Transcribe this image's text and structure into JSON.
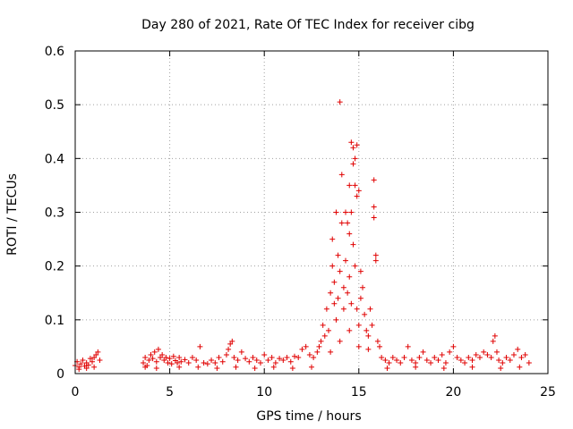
{
  "chart_data": {
    "type": "scatter",
    "title": "Day 280 of 2021, Rate Of TEC Index for receiver cibg",
    "xlabel": "GPS time / hours",
    "ylabel": "ROTI / TECUs",
    "xlim": [
      0,
      25
    ],
    "ylim": [
      0,
      0.6
    ],
    "xticks": [
      0,
      5,
      10,
      15,
      20,
      25
    ],
    "xtick_labels": [
      "0",
      "5",
      "10",
      "15",
      "20",
      "25"
    ],
    "yticks": [
      0,
      0.1,
      0.2,
      0.3,
      0.4,
      0.5,
      0.6
    ],
    "ytick_labels": [
      "0",
      "0.1",
      "0.2",
      "0.3",
      "0.4",
      "0.5",
      "0.6"
    ],
    "grid": true,
    "marker": "+",
    "color": "#e00000",
    "series": [
      {
        "name": "ROTI",
        "points": [
          [
            0.0,
            0.015
          ],
          [
            0.1,
            0.022
          ],
          [
            0.2,
            0.012
          ],
          [
            0.3,
            0.018
          ],
          [
            0.4,
            0.025
          ],
          [
            0.5,
            0.014
          ],
          [
            0.6,
            0.02
          ],
          [
            0.7,
            0.016
          ],
          [
            0.8,
            0.028
          ],
          [
            0.9,
            0.022
          ],
          [
            1.0,
            0.03
          ],
          [
            1.1,
            0.035
          ],
          [
            1.2,
            0.04
          ],
          [
            1.3,
            0.025
          ],
          [
            0.2,
            0.008
          ],
          [
            0.6,
            0.01
          ],
          [
            1.0,
            0.012
          ],
          [
            3.6,
            0.02
          ],
          [
            3.7,
            0.03
          ],
          [
            3.8,
            0.015
          ],
          [
            3.9,
            0.025
          ],
          [
            4.0,
            0.035
          ],
          [
            4.1,
            0.028
          ],
          [
            4.2,
            0.04
          ],
          [
            4.3,
            0.022
          ],
          [
            4.4,
            0.045
          ],
          [
            4.5,
            0.03
          ],
          [
            4.6,
            0.035
          ],
          [
            4.7,
            0.025
          ],
          [
            4.8,
            0.03
          ],
          [
            4.9,
            0.02
          ],
          [
            5.0,
            0.028
          ],
          [
            5.1,
            0.018
          ],
          [
            5.2,
            0.032
          ],
          [
            5.3,
            0.024
          ],
          [
            5.4,
            0.02
          ],
          [
            5.5,
            0.03
          ],
          [
            5.6,
            0.022
          ],
          [
            5.8,
            0.026
          ],
          [
            6.0,
            0.02
          ],
          [
            6.2,
            0.03
          ],
          [
            6.4,
            0.025
          ],
          [
            6.6,
            0.05
          ],
          [
            6.8,
            0.02
          ],
          [
            7.0,
            0.018
          ],
          [
            7.2,
            0.025
          ],
          [
            7.4,
            0.02
          ],
          [
            7.6,
            0.03
          ],
          [
            7.8,
            0.022
          ],
          [
            8.0,
            0.035
          ],
          [
            8.1,
            0.045
          ],
          [
            8.2,
            0.055
          ],
          [
            8.3,
            0.06
          ],
          [
            8.4,
            0.03
          ],
          [
            8.6,
            0.025
          ],
          [
            8.8,
            0.04
          ],
          [
            9.0,
            0.028
          ],
          [
            9.2,
            0.022
          ],
          [
            9.4,
            0.03
          ],
          [
            9.6,
            0.025
          ],
          [
            9.8,
            0.02
          ],
          [
            10.0,
            0.035
          ],
          [
            10.2,
            0.025
          ],
          [
            10.4,
            0.03
          ],
          [
            10.6,
            0.02
          ],
          [
            10.8,
            0.028
          ],
          [
            11.0,
            0.025
          ],
          [
            11.2,
            0.03
          ],
          [
            11.4,
            0.022
          ],
          [
            11.6,
            0.032
          ],
          [
            11.8,
            0.03
          ],
          [
            12.0,
            0.045
          ],
          [
            12.2,
            0.05
          ],
          [
            12.4,
            0.035
          ],
          [
            12.6,
            0.03
          ],
          [
            12.8,
            0.04
          ],
          [
            3.7,
            0.012
          ],
          [
            4.3,
            0.01
          ],
          [
            5.5,
            0.012
          ],
          [
            6.5,
            0.012
          ],
          [
            7.5,
            0.01
          ],
          [
            8.5,
            0.012
          ],
          [
            9.5,
            0.01
          ],
          [
            10.5,
            0.012
          ],
          [
            11.5,
            0.01
          ],
          [
            12.5,
            0.012
          ],
          [
            12.9,
            0.05
          ],
          [
            13.0,
            0.06
          ],
          [
            13.1,
            0.09
          ],
          [
            13.2,
            0.07
          ],
          [
            13.3,
            0.12
          ],
          [
            13.4,
            0.08
          ],
          [
            13.5,
            0.15
          ],
          [
            13.6,
            0.2
          ],
          [
            13.6,
            0.25
          ],
          [
            13.7,
            0.13
          ],
          [
            13.7,
            0.17
          ],
          [
            13.8,
            0.1
          ],
          [
            13.8,
            0.3
          ],
          [
            13.9,
            0.14
          ],
          [
            13.9,
            0.22
          ],
          [
            14.0,
            0.505
          ],
          [
            14.0,
            0.19
          ],
          [
            14.1,
            0.37
          ],
          [
            14.1,
            0.28
          ],
          [
            14.2,
            0.16
          ],
          [
            14.2,
            0.12
          ],
          [
            14.3,
            0.3
          ],
          [
            14.3,
            0.21
          ],
          [
            14.4,
            0.28
          ],
          [
            14.4,
            0.15
          ],
          [
            14.5,
            0.35
          ],
          [
            14.5,
            0.18
          ],
          [
            14.5,
            0.26
          ],
          [
            14.6,
            0.43
          ],
          [
            14.6,
            0.3
          ],
          [
            14.6,
            0.13
          ],
          [
            14.7,
            0.42
          ],
          [
            14.7,
            0.39
          ],
          [
            14.7,
            0.24
          ],
          [
            14.8,
            0.35
          ],
          [
            14.8,
            0.4
          ],
          [
            14.8,
            0.2
          ],
          [
            14.9,
            0.425
          ],
          [
            14.9,
            0.33
          ],
          [
            14.9,
            0.12
          ],
          [
            15.0,
            0.34
          ],
          [
            15.0,
            0.09
          ],
          [
            15.1,
            0.19
          ],
          [
            15.1,
            0.14
          ],
          [
            15.2,
            0.16
          ],
          [
            15.3,
            0.11
          ],
          [
            15.4,
            0.08
          ],
          [
            15.5,
            0.07
          ],
          [
            15.6,
            0.12
          ],
          [
            15.7,
            0.09
          ],
          [
            15.8,
            0.36
          ],
          [
            15.8,
            0.31
          ],
          [
            15.8,
            0.29
          ],
          [
            15.9,
            0.22
          ],
          [
            15.9,
            0.21
          ],
          [
            16.0,
            0.06
          ],
          [
            16.1,
            0.05
          ],
          [
            13.5,
            0.04
          ],
          [
            14.0,
            0.06
          ],
          [
            14.5,
            0.08
          ],
          [
            15.0,
            0.05
          ],
          [
            15.5,
            0.045
          ],
          [
            16.2,
            0.03
          ],
          [
            16.4,
            0.025
          ],
          [
            16.6,
            0.02
          ],
          [
            16.8,
            0.03
          ],
          [
            17.0,
            0.025
          ],
          [
            17.2,
            0.02
          ],
          [
            17.4,
            0.03
          ],
          [
            17.6,
            0.05
          ],
          [
            17.8,
            0.025
          ],
          [
            18.0,
            0.02
          ],
          [
            18.2,
            0.03
          ],
          [
            18.4,
            0.04
          ],
          [
            18.6,
            0.025
          ],
          [
            18.8,
            0.02
          ],
          [
            19.0,
            0.03
          ],
          [
            19.2,
            0.025
          ],
          [
            19.4,
            0.035
          ],
          [
            19.6,
            0.02
          ],
          [
            19.8,
            0.04
          ],
          [
            20.0,
            0.05
          ],
          [
            20.2,
            0.03
          ],
          [
            20.4,
            0.025
          ],
          [
            20.6,
            0.02
          ],
          [
            20.8,
            0.03
          ],
          [
            21.0,
            0.025
          ],
          [
            21.2,
            0.035
          ],
          [
            21.4,
            0.03
          ],
          [
            21.6,
            0.04
          ],
          [
            21.8,
            0.035
          ],
          [
            22.0,
            0.03
          ],
          [
            22.1,
            0.06
          ],
          [
            22.2,
            0.07
          ],
          [
            22.3,
            0.04
          ],
          [
            22.4,
            0.025
          ],
          [
            22.6,
            0.02
          ],
          [
            22.8,
            0.03
          ],
          [
            23.0,
            0.025
          ],
          [
            23.2,
            0.035
          ],
          [
            23.4,
            0.045
          ],
          [
            23.6,
            0.03
          ],
          [
            23.8,
            0.035
          ],
          [
            24.0,
            0.02
          ],
          [
            16.5,
            0.01
          ],
          [
            18.0,
            0.012
          ],
          [
            19.5,
            0.01
          ],
          [
            21.0,
            0.012
          ],
          [
            22.5,
            0.01
          ],
          [
            23.5,
            0.012
          ]
        ]
      }
    ]
  }
}
